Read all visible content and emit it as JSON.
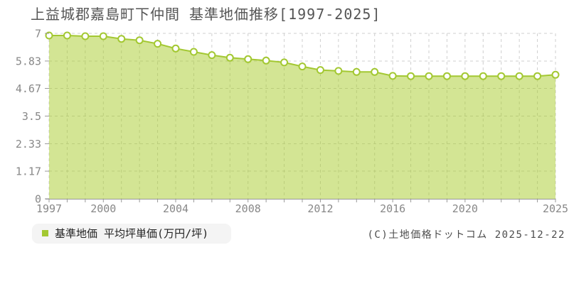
{
  "title": "上益城郡嘉島町下仲間 基準地価推移[1997-2025]",
  "legend": {
    "label": "基準地価 平均坪単価(万円/坪)",
    "marker_color": "#a3c832"
  },
  "footer": {
    "copyright": "(C)土地価格ドットコム 2025-12-22"
  },
  "chart_data": {
    "type": "area",
    "title": "上益城郡嘉島町下仲間 基準地価推移[1997-2025]",
    "x": [
      1997,
      1998,
      1999,
      2000,
      2001,
      2002,
      2003,
      2004,
      2005,
      2006,
      2007,
      2008,
      2009,
      2010,
      2011,
      2012,
      2013,
      2014,
      2015,
      2016,
      2017,
      2018,
      2019,
      2020,
      2021,
      2022,
      2023,
      2024,
      2025
    ],
    "series": [
      {
        "name": "基準地価 平均坪単価(万円/坪)",
        "values": [
          6.91,
          6.91,
          6.88,
          6.88,
          6.77,
          6.71,
          6.56,
          6.36,
          6.22,
          6.08,
          5.97,
          5.91,
          5.85,
          5.77,
          5.6,
          5.45,
          5.41,
          5.37,
          5.37,
          5.2,
          5.19,
          5.19,
          5.19,
          5.19,
          5.19,
          5.19,
          5.19,
          5.19,
          5.25
        ]
      }
    ],
    "xlabel": "",
    "ylabel": "",
    "ylim": [
      0,
      7
    ],
    "ytick_values": [
      0,
      1.17,
      2.33,
      3.5,
      4.67,
      5.83,
      7
    ],
    "ytick_labels": [
      "0",
      "1.17",
      "2.33",
      "3.5",
      "4.67",
      "5.83",
      "7"
    ],
    "xtick_label_years": [
      1997,
      2000,
      2004,
      2008,
      2012,
      2016,
      2020,
      2025
    ],
    "grid": "dashed",
    "legend_position": "bottom-left",
    "colors": {
      "line": "#a3c832",
      "fill": "rgba(168,204,42,0.5)",
      "point_fill": "#ffffff",
      "point_stroke": "#a3c832",
      "grid": "#cfcfcf",
      "axis": "#999999",
      "tick_label": "#888888"
    }
  }
}
